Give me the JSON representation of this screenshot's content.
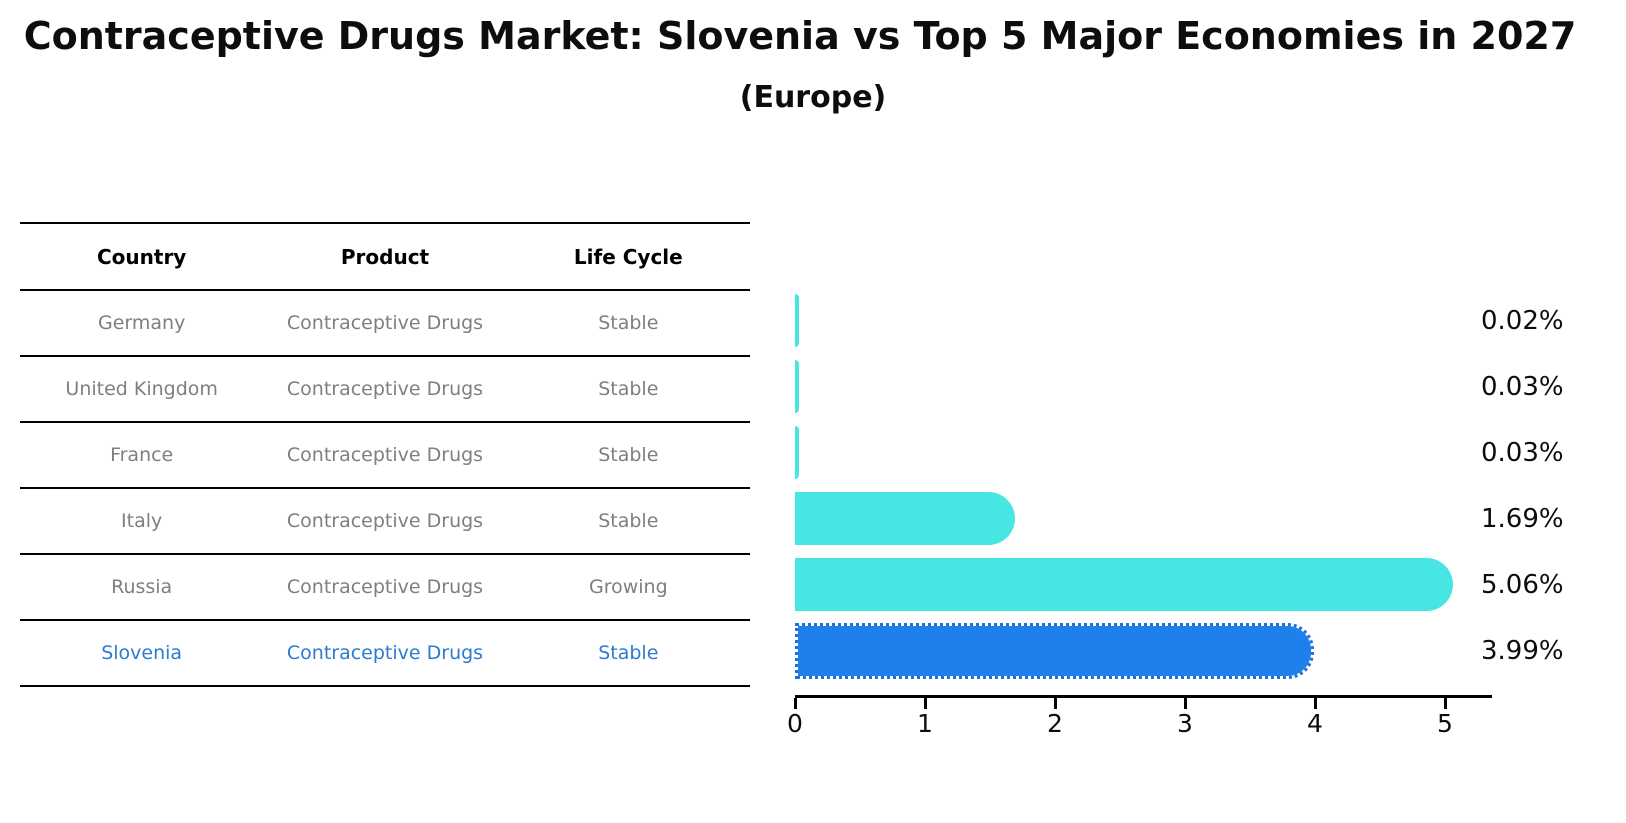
{
  "chart_data": {
    "type": "bar",
    "orientation": "horizontal",
    "title": "Contraceptive Drugs Market: Slovenia vs Top 5 Major Economies in 2027",
    "subtitle": "(Europe)",
    "categories": [
      "Germany",
      "United Kingdom",
      "France",
      "Italy",
      "Russia",
      "Slovenia"
    ],
    "values": [
      0.02,
      0.03,
      0.03,
      1.69,
      5.06,
      3.99
    ],
    "value_labels": [
      "0.02%",
      "0.03%",
      "0.03%",
      "1.69%",
      "5.06%",
      "3.99%"
    ],
    "x_ticks": [
      "0",
      "1",
      "2",
      "3",
      "4",
      "5"
    ],
    "xlim": [
      0,
      5.36
    ],
    "grid": false,
    "legend": false,
    "highlight_index": 5,
    "bar_color_default": "#48e6e3",
    "bar_color_highlight": "#1f80ec",
    "highlight_edge_style": "dotted"
  },
  "table": {
    "headers": [
      "Country",
      "Product",
      "Life Cycle"
    ],
    "rows": [
      {
        "country": "Germany",
        "product": "Contraceptive Drugs",
        "life_cycle": "Stable",
        "highlight": false
      },
      {
        "country": "United Kingdom",
        "product": "Contraceptive Drugs",
        "life_cycle": "Stable",
        "highlight": false
      },
      {
        "country": "France",
        "product": "Contraceptive Drugs",
        "life_cycle": "Stable",
        "highlight": false
      },
      {
        "country": "Italy",
        "product": "Contraceptive Drugs",
        "life_cycle": "Stable",
        "highlight": false
      },
      {
        "country": "Russia",
        "product": "Contraceptive Drugs",
        "life_cycle": "Growing",
        "highlight": false
      },
      {
        "country": "Slovenia",
        "product": "Contraceptive Drugs",
        "life_cycle": "Stable",
        "highlight": true
      }
    ]
  },
  "colors": {
    "row_text": "#7f7f7f",
    "highlight_text": "#2c7bd2",
    "header_text": "#000000",
    "axis": "#000000",
    "background": "#ffffff"
  }
}
